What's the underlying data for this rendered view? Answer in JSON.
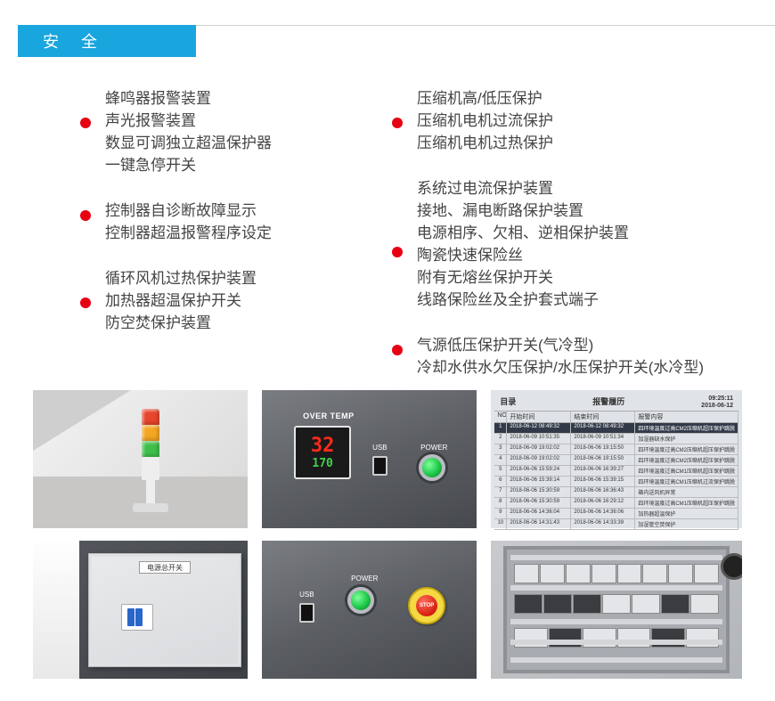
{
  "header": {
    "title": "安 全"
  },
  "left": {
    "groups": [
      {
        "lines": [
          "蜂鸣器报警装置",
          "声光报警装置",
          "数显可调独立超温保护器",
          "一键急停开关"
        ]
      },
      {
        "lines": [
          "控制器自诊断故障显示",
          "控制器超温报警程序设定"
        ]
      },
      {
        "lines": [
          "循环风机过热保护装置",
          "加热器超温保护开关",
          "防空焚保护装置"
        ]
      }
    ]
  },
  "right": {
    "groups": [
      {
        "lines": [
          "压缩机高/低压保护",
          "压缩机电机过流保护",
          "压缩机电机过热保护"
        ]
      },
      {
        "lines": [
          "系统过电流保护装置",
          "接地、漏电断路保护装置",
          "电源相序、欠相、逆相保护装置",
          "陶瓷快速保险丝",
          "附有无熔丝保护开关",
          "线路保险丝及全护套式端子"
        ]
      },
      {
        "lines": [
          "气源低压保护开关(气冷型)",
          "冷却水供水欠压保护/水压保护开关(水冷型)"
        ]
      }
    ]
  },
  "panel2": {
    "overtemp": "OVER TEMP",
    "big": "32",
    "small": "170",
    "usb": "USB",
    "power": "POWER"
  },
  "panel5": {
    "usb": "USB",
    "power": "POWER",
    "stop": "STOP"
  },
  "log": {
    "dir": "目录",
    "title": "报警履历",
    "clock_time": "09:25:11",
    "clock_date": "2018-06-12",
    "head": {
      "no": "NO",
      "start": "开始时间",
      "end": "结束时间",
      "content": "报警内容"
    },
    "rows": [
      {
        "n": "1",
        "s": "2018-06-12 08:49:32",
        "e": "2018-06-12 08:49:32",
        "c": "四环境温度过高CM2压缩机超压保护跳脱",
        "hl": true
      },
      {
        "n": "2",
        "s": "2018-06-09 10:51:35",
        "e": "2018-06-09 10:51:34",
        "c": "加湿器缺水保护"
      },
      {
        "n": "3",
        "s": "2018-06-09 19:02:02",
        "e": "2018-06-06 19:15:50",
        "c": "四环境温度过高CM2压缩机超压保护跳脱"
      },
      {
        "n": "4",
        "s": "2018-06-09 19:02:02",
        "e": "2018-06-06 19:15:50",
        "c": "四环境温度过高CM2压缩机超压保护跳脱"
      },
      {
        "n": "5",
        "s": "2018-06-06 15:59:24",
        "e": "2018-06-06 16:39:27",
        "c": "四环境温度过高CM1压缩机超压保护跳脱"
      },
      {
        "n": "6",
        "s": "2018-06-06 15:39:14",
        "e": "2018-06-06 15:39:15",
        "c": "四环境温度过高CM1压缩机过流保护跳脱"
      },
      {
        "n": "7",
        "s": "2018-06-06 15:30:59",
        "e": "2018-06-06 16:36:43",
        "c": "箱内送风机异常"
      },
      {
        "n": "8",
        "s": "2018-06-06 15:30:59",
        "e": "2018-06-06 16:29:12",
        "c": "四环境温度过高CM1压缩机超压保护跳脱"
      },
      {
        "n": "9",
        "s": "2018-06-06 14:36:04",
        "e": "2018-06-06 14:36:06",
        "c": "加热器超温保护"
      },
      {
        "n": "10",
        "s": "2018-06-06 14:31:43",
        "e": "2018-06-06 14:33:39",
        "c": "加湿管空焚保护"
      }
    ]
  },
  "box4": {
    "label": "电源总开关"
  },
  "colors": {
    "accent": "#19a5de",
    "bullet": "#e60012"
  }
}
